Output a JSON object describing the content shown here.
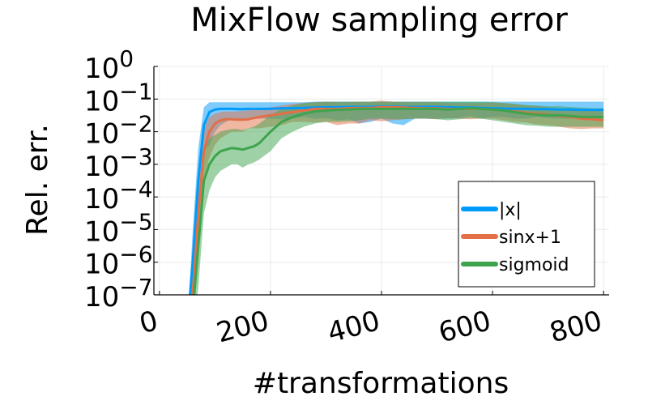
{
  "chart_data": {
    "type": "line",
    "title": "MixFlow sampling error",
    "xlabel": "#transformations",
    "ylabel": "Rel. err.",
    "xlim": [
      -10,
      810
    ],
    "ylim_log10": [
      -7,
      0
    ],
    "y_scale": "log",
    "x_ticks": [
      {
        "value": 0,
        "label": "0"
      },
      {
        "value": 200,
        "label": "200"
      },
      {
        "value": 400,
        "label": "400"
      },
      {
        "value": 600,
        "label": "600"
      },
      {
        "value": 800,
        "label": "800"
      }
    ],
    "y_ticks": [
      {
        "exp": 0,
        "base": "10",
        "sup": "0"
      },
      {
        "exp": -1,
        "base": "10",
        "sup": "−1"
      },
      {
        "exp": -2,
        "base": "10",
        "sup": "−2"
      },
      {
        "exp": -3,
        "base": "10",
        "sup": "−3"
      },
      {
        "exp": -4,
        "base": "10",
        "sup": "−4"
      },
      {
        "exp": -5,
        "base": "10",
        "sup": "−5"
      },
      {
        "exp": -6,
        "base": "10",
        "sup": "−6"
      },
      {
        "exp": -7,
        "base": "10",
        "sup": "−7"
      }
    ],
    "grid": true,
    "legend": "bottom-right",
    "x": [
      50,
      60,
      70,
      80,
      90,
      100,
      110,
      120,
      130,
      140,
      150,
      160,
      170,
      180,
      200,
      220,
      240,
      260,
      280,
      300,
      320,
      340,
      360,
      380,
      400,
      420,
      440,
      460,
      480,
      500,
      520,
      540,
      560,
      580,
      600,
      620,
      640,
      660,
      680,
      700,
      720,
      740,
      760,
      780,
      800
    ],
    "series": [
      {
        "name": "|x|",
        "color": "#009AFA",
        "log10_mean": [
          -8.0,
          -6.0,
          -3.5,
          -1.8,
          -1.4,
          -1.32,
          -1.3,
          -1.3,
          -1.3,
          -1.31,
          -1.31,
          -1.3,
          -1.3,
          -1.3,
          -1.3,
          -1.28,
          -1.28,
          -1.27,
          -1.26,
          -1.25,
          -1.25,
          -1.24,
          -1.24,
          -1.24,
          -1.23,
          -1.23,
          -1.24,
          -1.24,
          -1.24,
          -1.24,
          -1.25,
          -1.26,
          -1.26,
          -1.27,
          -1.28,
          -1.29,
          -1.3,
          -1.3,
          -1.31,
          -1.31,
          -1.32,
          -1.32,
          -1.33,
          -1.33,
          -1.33
        ],
        "log10_lo": [
          -8.0,
          -7.5,
          -4.5,
          -2.6,
          -2.4,
          -2.0,
          -1.8,
          -1.7,
          -1.6,
          -1.6,
          -1.6,
          -1.6,
          -1.6,
          -1.6,
          -1.6,
          -1.62,
          -1.6,
          -1.55,
          -1.6,
          -1.58,
          -1.65,
          -1.62,
          -1.75,
          -1.7,
          -1.6,
          -1.75,
          -1.8,
          -1.6,
          -1.6,
          -1.6,
          -1.6,
          -1.58,
          -1.52,
          -1.6,
          -1.55,
          -1.55,
          -1.6,
          -1.6,
          -1.55,
          -1.58,
          -1.6,
          -1.6,
          -1.58,
          -1.6,
          -1.6
        ],
        "log10_hi": [
          -8.0,
          -5.0,
          -2.5,
          -1.25,
          -1.1,
          -1.1,
          -1.1,
          -1.1,
          -1.1,
          -1.1,
          -1.1,
          -1.1,
          -1.1,
          -1.1,
          -1.1,
          -1.1,
          -1.1,
          -1.1,
          -1.08,
          -1.08,
          -1.08,
          -1.08,
          -1.08,
          -1.08,
          -1.08,
          -1.08,
          -1.08,
          -1.08,
          -1.08,
          -1.08,
          -1.08,
          -1.08,
          -1.08,
          -1.08,
          -1.08,
          -1.08,
          -1.08,
          -1.08,
          -1.08,
          -1.08,
          -1.08,
          -1.08,
          -1.08,
          -1.08,
          -1.08
        ]
      },
      {
        "name": "sinx+1",
        "color": "#E26F46",
        "log10_mean": [
          -8.0,
          -7.0,
          -4.5,
          -2.6,
          -2.0,
          -1.75,
          -1.65,
          -1.62,
          -1.62,
          -1.63,
          -1.63,
          -1.62,
          -1.58,
          -1.55,
          -1.5,
          -1.45,
          -1.4,
          -1.35,
          -1.3,
          -1.3,
          -1.3,
          -1.28,
          -1.27,
          -1.27,
          -1.25,
          -1.25,
          -1.26,
          -1.27,
          -1.28,
          -1.28,
          -1.3,
          -1.3,
          -1.3,
          -1.3,
          -1.32,
          -1.35,
          -1.38,
          -1.42,
          -1.45,
          -1.48,
          -1.52,
          -1.55,
          -1.6,
          -1.62,
          -1.65
        ],
        "log10_lo": [
          -8.0,
          -8.0,
          -5.5,
          -3.4,
          -2.8,
          -2.4,
          -2.2,
          -2.1,
          -2.0,
          -2.0,
          -2.0,
          -1.9,
          -1.9,
          -1.9,
          -1.85,
          -1.8,
          -1.7,
          -1.7,
          -1.72,
          -1.7,
          -1.8,
          -1.75,
          -1.75,
          -1.65,
          -1.68,
          -1.65,
          -1.62,
          -1.6,
          -1.6,
          -1.62,
          -1.58,
          -1.6,
          -1.62,
          -1.6,
          -1.6,
          -1.65,
          -1.7,
          -1.72,
          -1.78,
          -1.8,
          -1.85,
          -1.9,
          -1.92,
          -1.9,
          -1.9
        ],
        "log10_hi": [
          -8.0,
          -6.2,
          -3.5,
          -1.9,
          -1.55,
          -1.45,
          -1.4,
          -1.38,
          -1.38,
          -1.38,
          -1.36,
          -1.35,
          -1.3,
          -1.28,
          -1.25,
          -1.2,
          -1.15,
          -1.12,
          -1.1,
          -1.08,
          -1.1,
          -1.1,
          -1.08,
          -1.08,
          -1.05,
          -1.08,
          -1.1,
          -1.1,
          -1.1,
          -1.1,
          -1.12,
          -1.12,
          -1.12,
          -1.12,
          -1.1,
          -1.12,
          -1.15,
          -1.2,
          -1.22,
          -1.25,
          -1.28,
          -1.3,
          -1.32,
          -1.35,
          -1.38
        ]
      },
      {
        "name": "sigmoid",
        "color": "#3DA44D",
        "log10_mean": [
          -8.0,
          -7.5,
          -5.5,
          -3.5,
          -3.0,
          -2.75,
          -2.6,
          -2.55,
          -2.5,
          -2.52,
          -2.55,
          -2.5,
          -2.45,
          -2.35,
          -2.0,
          -1.7,
          -1.55,
          -1.45,
          -1.38,
          -1.35,
          -1.33,
          -1.32,
          -1.3,
          -1.3,
          -1.3,
          -1.3,
          -1.3,
          -1.3,
          -1.3,
          -1.3,
          -1.32,
          -1.3,
          -1.28,
          -1.3,
          -1.32,
          -1.35,
          -1.4,
          -1.45,
          -1.48,
          -1.5,
          -1.5,
          -1.52,
          -1.55,
          -1.55,
          -1.55
        ],
        "log10_lo": [
          -8.0,
          -8.0,
          -6.8,
          -4.5,
          -3.8,
          -3.4,
          -3.2,
          -3.1,
          -3.0,
          -3.0,
          -3.1,
          -3.0,
          -2.95,
          -2.85,
          -2.6,
          -2.2,
          -2.0,
          -1.85,
          -1.75,
          -1.7,
          -1.7,
          -1.68,
          -1.65,
          -1.6,
          -1.6,
          -1.62,
          -1.62,
          -1.6,
          -1.6,
          -1.62,
          -1.65,
          -1.62,
          -1.58,
          -1.6,
          -1.65,
          -1.7,
          -1.75,
          -1.8,
          -1.82,
          -1.85,
          -1.85,
          -1.85,
          -1.85,
          -1.85,
          -1.85
        ],
        "log10_hi": [
          -8.0,
          -6.5,
          -4.2,
          -2.6,
          -2.2,
          -2.1,
          -2.0,
          -1.95,
          -1.92,
          -1.92,
          -1.95,
          -1.9,
          -1.85,
          -1.75,
          -1.5,
          -1.3,
          -1.2,
          -1.12,
          -1.1,
          -1.08,
          -1.08,
          -1.08,
          -1.08,
          -1.08,
          -1.08,
          -1.08,
          -1.08,
          -1.08,
          -1.08,
          -1.08,
          -1.08,
          -1.08,
          -1.08,
          -1.08,
          -1.1,
          -1.12,
          -1.15,
          -1.18,
          -1.2,
          -1.22,
          -1.22,
          -1.24,
          -1.26,
          -1.28,
          -1.28
        ]
      }
    ]
  }
}
